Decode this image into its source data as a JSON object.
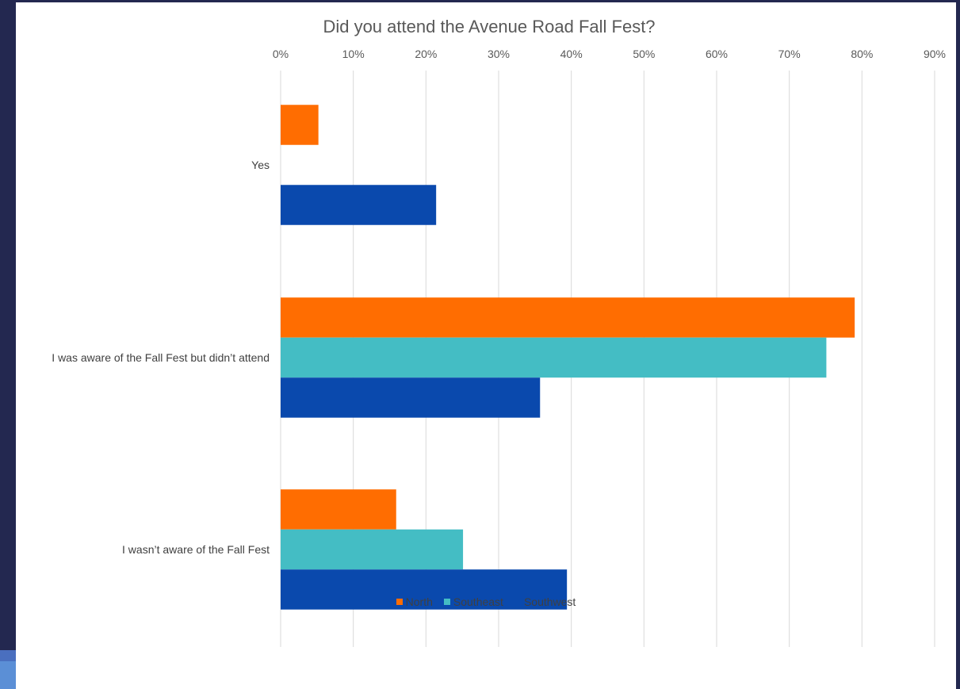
{
  "chart_data": {
    "type": "bar",
    "orientation": "horizontal",
    "title": "Did you attend the Avenue Road Fall Fest?",
    "categories": [
      "Yes",
      "I was aware of the Fall Fest but didn’t attend",
      "I wasn’t aware of the Fall Fest"
    ],
    "series": [
      {
        "name": "North",
        "color": "#ff6d01",
        "values": [
          0.052,
          0.79,
          0.159
        ]
      },
      {
        "name": "Southeast",
        "color": "#44bdc4",
        "values": [
          0.0,
          0.751,
          0.251
        ]
      },
      {
        "name": "Southwest",
        "color": "#0a49ad",
        "values": [
          0.214,
          0.357,
          0.394
        ]
      }
    ],
    "xlim": [
      0,
      0.9
    ],
    "x_ticks": [
      "0%",
      "10%",
      "20%",
      "30%",
      "40%",
      "50%",
      "60%",
      "70%",
      "80%",
      "90%"
    ],
    "x_axis_position": "top",
    "grid": true,
    "legend_position": "bottom"
  }
}
